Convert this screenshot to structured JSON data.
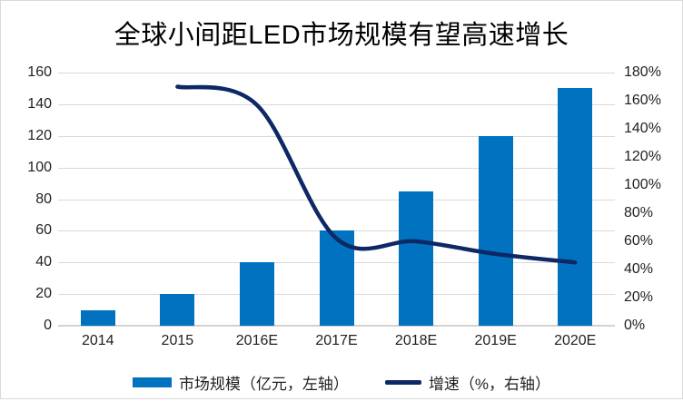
{
  "title": "全球小间距LED市场规模有望高速增长",
  "chart_data": {
    "type": "combo",
    "categories": [
      "2014",
      "2015",
      "2016E",
      "2017E",
      "2018E",
      "2019E",
      "2020E"
    ],
    "series": [
      {
        "name": "市场规模（亿元，左轴）",
        "type": "bar",
        "axis": "left",
        "color": "#0072C0",
        "values": [
          10,
          20,
          40,
          60,
          85,
          120,
          150
        ]
      },
      {
        "name": "增速（%，右轴）",
        "type": "line",
        "axis": "right",
        "color": "#0D2864",
        "smooth": true,
        "values": [
          null,
          170,
          157,
          62,
          60,
          51,
          45
        ]
      }
    ],
    "left_axis": {
      "min": 0,
      "max": 160,
      "step": 20,
      "tick_labels": [
        "0",
        "20",
        "40",
        "60",
        "80",
        "100",
        "120",
        "140",
        "160"
      ]
    },
    "right_axis": {
      "min": 0,
      "max": 180,
      "step": 20,
      "tick_labels": [
        "0%",
        "20%",
        "40%",
        "60%",
        "80%",
        "100%",
        "120%",
        "140%",
        "160%",
        "180%"
      ]
    },
    "grid": true,
    "legend_position": "bottom"
  },
  "legend": {
    "items": [
      {
        "label": "市场规模（亿元，左轴）",
        "swatch": "bar"
      },
      {
        "label": "增速（%，右轴）",
        "swatch": "line"
      }
    ]
  },
  "colors": {
    "bar": "#0072C0",
    "line": "#0D2864",
    "gridline": "#D9D9D9",
    "axis_line": "#D2D2D2",
    "text": "#1F1F1F",
    "border": "#D9D9D9",
    "background": "#FFFFFF"
  }
}
